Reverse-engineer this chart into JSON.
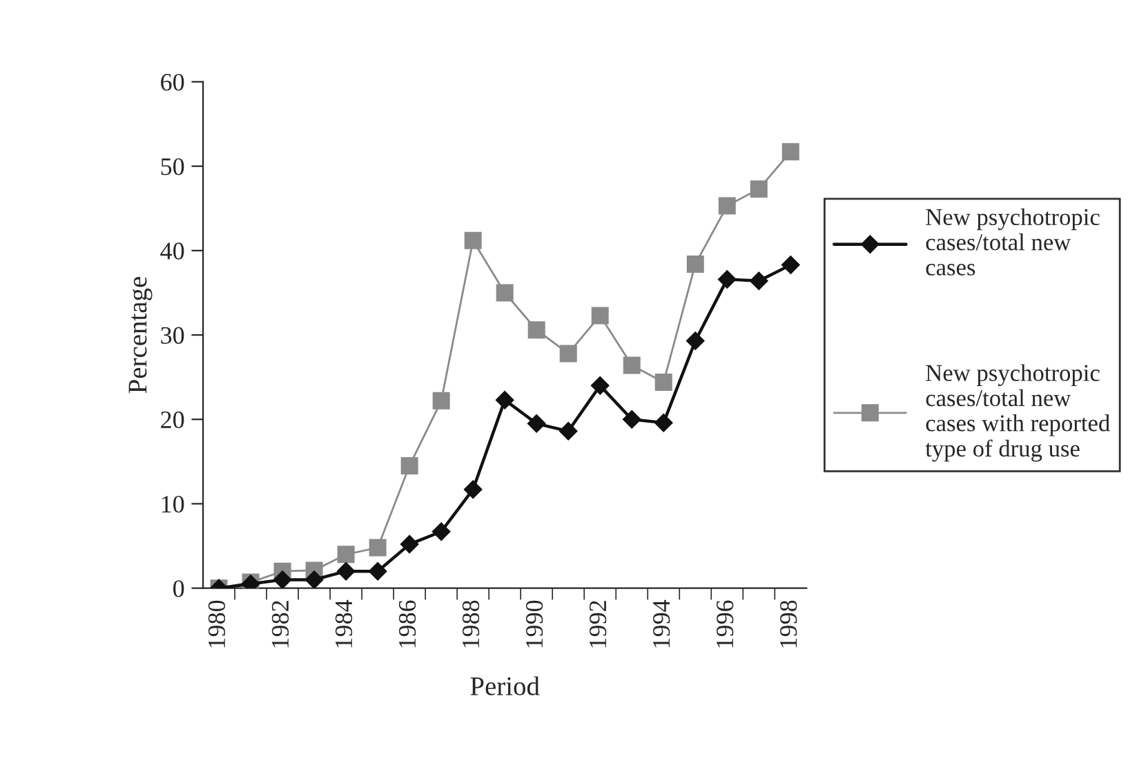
{
  "chart_data": {
    "type": "line",
    "xlabel": "Period",
    "ylabel": "Percentage",
    "categories": [
      "1980",
      null,
      "1982",
      null,
      "1984",
      null,
      "1986",
      null,
      "1988",
      null,
      "1990",
      null,
      "1992",
      null,
      "1994",
      null,
      "1996",
      null,
      "1998"
    ],
    "series": [
      {
        "name": "New psychotropic cases/total new cases",
        "color": "#111111",
        "marker": "diamond",
        "values": [
          0,
          0.5,
          1,
          1,
          2,
          2,
          5.2,
          6.7,
          11.7,
          22.3,
          19.5,
          18.6,
          24,
          20,
          19.6,
          29.3,
          36.6,
          36.4,
          38.3
        ]
      },
      {
        "name": "New psychotropic cases/total new cases with reported type of drug use",
        "color": "#8a8a8a",
        "marker": "square",
        "values": [
          0,
          0.7,
          2,
          2.1,
          4,
          4.8,
          14.5,
          22.2,
          41.2,
          35,
          30.6,
          27.8,
          32.3,
          26.4,
          24.4,
          38.4,
          45.3,
          47.3,
          51.7
        ]
      }
    ],
    "ylim": [
      0,
      60
    ],
    "yticks": [
      0,
      10,
      20,
      30,
      40,
      50,
      60
    ],
    "grid": false,
    "legend": "right"
  }
}
